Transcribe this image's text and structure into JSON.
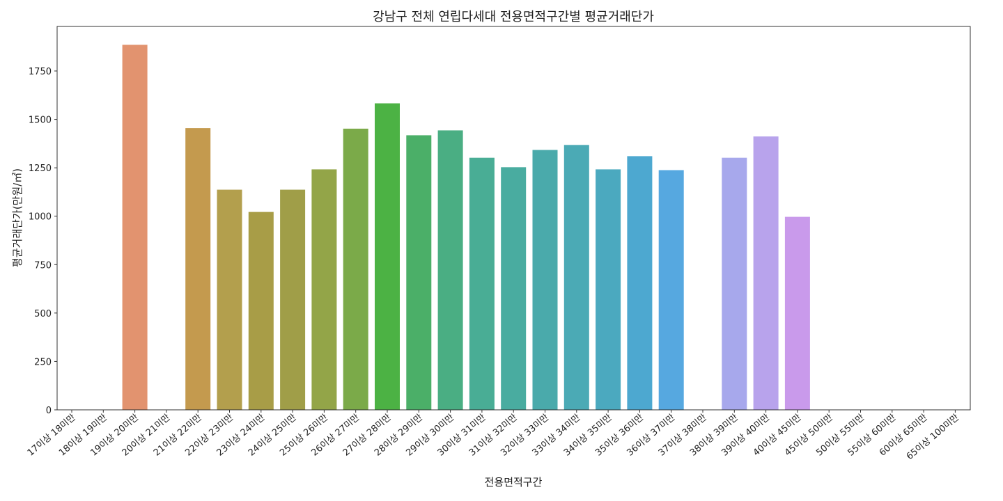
{
  "chart_data": {
    "type": "bar",
    "title": "강남구 전체 연립다세대 전용면적구간별 평균거래단가",
    "xlabel": "전용면적구간",
    "ylabel": "평균거래단가(만원/㎡)",
    "ylim": [
      0,
      1980
    ],
    "yticks": [
      0,
      250,
      500,
      750,
      1000,
      1250,
      1500,
      1750
    ],
    "categories": [
      "17이상 18미만",
      "18이상 19미만",
      "19이상 20미만",
      "20이상 21미만",
      "21이상 22미만",
      "22이상 23미만",
      "23이상 24미만",
      "24이상 25미만",
      "25이상 26미만",
      "26이상 27미만",
      "27이상 28미만",
      "28이상 29미만",
      "29이상 30미만",
      "30이상 31미만",
      "31이상 32미만",
      "32이상 33미만",
      "33이상 34미만",
      "34이상 35미만",
      "35이상 36미만",
      "36이상 37미만",
      "37이상 38미만",
      "38이상 39미만",
      "39이상 40미만",
      "40이상 45미만",
      "45이상 50미만",
      "50이상 55미만",
      "55이상 60미만",
      "60이상 65미만",
      "65이상 100미만"
    ],
    "values": [
      null,
      null,
      1885,
      null,
      1455,
      1137,
      1022,
      1137,
      1242,
      1452,
      1583,
      1418,
      1443,
      1302,
      1253,
      1342,
      1368,
      1242,
      1310,
      1238,
      null,
      1302,
      1412,
      997,
      null,
      null,
      null,
      null,
      null
    ],
    "colors": [
      "#f2837b",
      "#ea8b6a",
      "#e2936f",
      "#d69a57",
      "#c49a4e",
      "#b39f4d",
      "#a89d47",
      "#a09e48",
      "#93a548",
      "#7baa49",
      "#4cb244",
      "#4baf68",
      "#4aae83",
      "#49ad95",
      "#49aca0",
      "#4aaaab",
      "#4baab5",
      "#4ba9bf",
      "#4da8d0",
      "#56a8e0",
      "#8ba6ea",
      "#a7a8ec",
      "#b8a3ec",
      "#c99aeb",
      "#e28fe5",
      "#ef8ad6",
      "#f486c4",
      "#f684b0",
      "#f7839d"
    ],
    "grid": false,
    "legend": "none"
  }
}
